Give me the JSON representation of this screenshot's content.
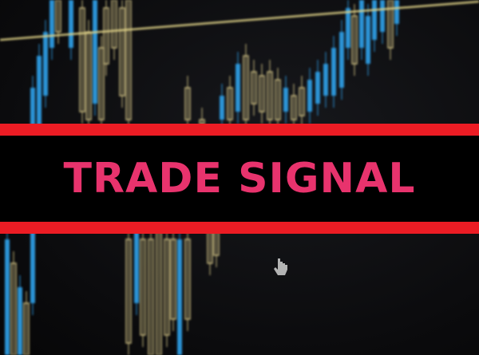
{
  "banner": {
    "title": "TRADE SIGNAL",
    "title_color": "#e8336d",
    "stripe_color": "#ec1c24",
    "band_color": "#000000"
  },
  "background": {
    "description_icon": "candlestick-chart-icon",
    "bull_color": "#2f9ee6",
    "bear_color": "#d8c98a",
    "trendline_color": "#e4d68a"
  }
}
